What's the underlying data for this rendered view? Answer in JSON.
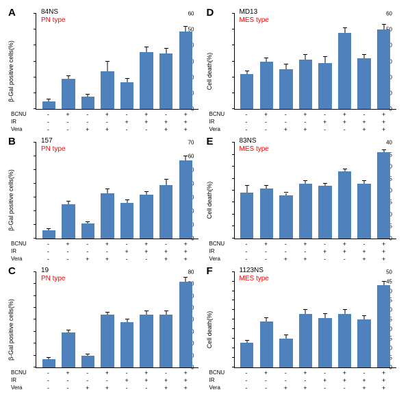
{
  "bar_color": "#4f81bd",
  "err_color": "#000000",
  "axis_color": "#000000",
  "type_color": "#ff0000",
  "panels": [
    {
      "letter": "A",
      "name": "84NS",
      "type": "PN type",
      "ylabel": "β-Gal positive cells(%)",
      "ymax": 60,
      "ystep": 10,
      "values": [
        5,
        19,
        8,
        24,
        17,
        36,
        35,
        49
      ],
      "errs": [
        1,
        2,
        1,
        6,
        2,
        3,
        3,
        3
      ]
    },
    {
      "letter": "B",
      "name": "157",
      "type": "PN type",
      "ylabel": "β-Gal positive cells(%)",
      "ymax": 70,
      "ystep": 10,
      "values": [
        6,
        25,
        11,
        33,
        26,
        32,
        39,
        57
      ],
      "errs": [
        1,
        2,
        1,
        3,
        2,
        2,
        4,
        3
      ]
    },
    {
      "letter": "C",
      "name": "19",
      "type": "PN type",
      "ylabel": "β-Gal positive cells(%)",
      "ymax": 80,
      "ystep": 10,
      "values": [
        7,
        29,
        10,
        44,
        38,
        44,
        44,
        72
      ],
      "errs": [
        1,
        2,
        1,
        2,
        2,
        3,
        3,
        3
      ]
    },
    {
      "letter": "D",
      "name": "MD13",
      "type": "MES type",
      "ylabel": "Cell death(%)",
      "ymax": 60,
      "ystep": 10,
      "values": [
        22,
        30,
        25,
        31,
        29,
        48,
        32,
        50
      ],
      "errs": [
        2,
        2,
        3,
        3,
        4,
        3,
        2,
        3
      ]
    },
    {
      "letter": "E",
      "name": "83NS",
      "type": "MES type",
      "ylabel": "Cell death(%)",
      "ymax": 40,
      "ystep": 5,
      "values": [
        19,
        21,
        18,
        23,
        22,
        28,
        23,
        36
      ],
      "errs": [
        3,
        1,
        1,
        1,
        1,
        1,
        1,
        1
      ]
    },
    {
      "letter": "F",
      "name": "1123NS",
      "type": "MES type",
      "ylabel": "Cell death(%)",
      "ymax": 50,
      "ystep": 5,
      "values": [
        13,
        24,
        15,
        28,
        26,
        28,
        25,
        43
      ],
      "errs": [
        1,
        2,
        2,
        2,
        2,
        2,
        2,
        2
      ]
    }
  ],
  "conditions": {
    "labels": [
      "BCNU",
      "IR",
      "Vera"
    ],
    "rows": [
      [
        "-",
        "+",
        "-",
        "+",
        "-",
        "+",
        "-",
        "+"
      ],
      [
        "-",
        "-",
        "-",
        "-",
        "+",
        "+",
        "+",
        "+"
      ],
      [
        "-",
        "-",
        "+",
        "+",
        "-",
        "-",
        "+",
        "+"
      ]
    ]
  }
}
